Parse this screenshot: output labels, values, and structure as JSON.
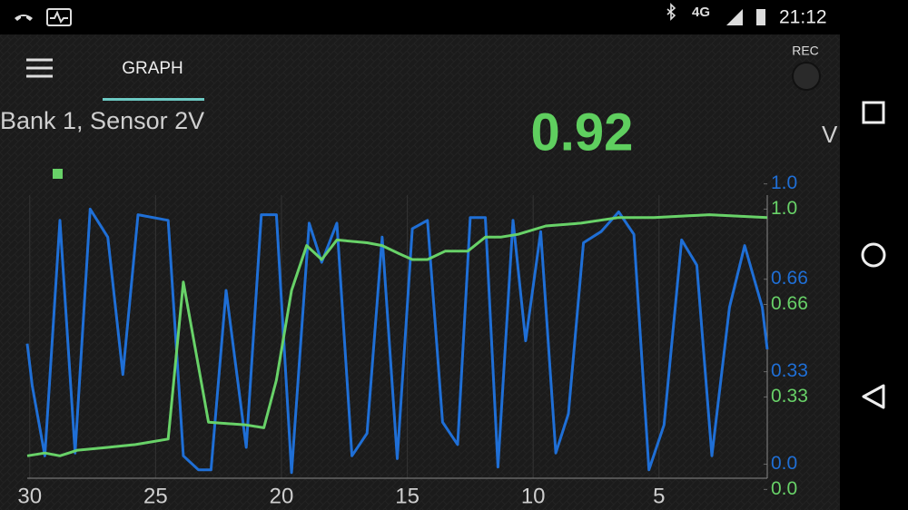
{
  "status_bar": {
    "network": "4G",
    "time": "21:12"
  },
  "app_bar": {
    "tab": "GRAPH",
    "rec": "REC"
  },
  "sensor": {
    "name": "Bank 1, Sensor 2V",
    "value": "0.92",
    "unit": "V"
  },
  "chart_data": {
    "type": "line",
    "xlim": [
      30.1,
      0.7
    ],
    "xticks": [
      30,
      25,
      20,
      15,
      10,
      5
    ],
    "ylim": [
      -0.05,
      0.96
    ],
    "yticks": [
      {
        "value": 0,
        "label": "0.0"
      },
      0.33,
      0.66,
      {
        "value": 1,
        "label": "1.0"
      }
    ],
    "y2lim": [
      0.04,
      1.05
    ],
    "y2ticks": [
      {
        "value": 0,
        "label": "0.0"
      },
      0.33,
      0.66,
      {
        "value": 1,
        "label": "1.0"
      }
    ],
    "grid": true,
    "series": [
      {
        "color": "#1f6fd6",
        "x": [
          30.1,
          29.9,
          29.4,
          28.8,
          28.2,
          27.6,
          26.9,
          26.3,
          25.7,
          24.5,
          23.9,
          23.3,
          22.8,
          22.2,
          21.4,
          20.8,
          20.2,
          19.6,
          18.9,
          18.4,
          17.8,
          17.2,
          16.6,
          16.0,
          15.4,
          14.8,
          14.2,
          13.6,
          13.0,
          12.5,
          11.9,
          11.4,
          10.8,
          10.3,
          9.7,
          9.1,
          8.6,
          8.0,
          7.3,
          6.6,
          6.0,
          5.4,
          4.8,
          4.1,
          3.5,
          2.9,
          2.2,
          1.6,
          0.9,
          0.7
        ],
        "values": [
          0.43,
          0.28,
          0.03,
          0.87,
          0.04,
          0.91,
          0.81,
          0.32,
          0.89,
          0.87,
          0.03,
          -0.02,
          -0.02,
          0.62,
          0.06,
          0.89,
          0.89,
          -0.03,
          0.86,
          0.72,
          0.86,
          0.03,
          0.11,
          0.81,
          0.02,
          0.84,
          0.87,
          0.15,
          0.07,
          0.88,
          0.88,
          -0.01,
          0.87,
          0.44,
          0.83,
          0.04,
          0.18,
          0.79,
          0.83,
          0.9,
          0.82,
          -0.02,
          0.14,
          0.8,
          0.71,
          0.03,
          0.56,
          0.78,
          0.56,
          0.41
        ]
      },
      {
        "color": "#68d268",
        "axis": "y2",
        "x": [
          30.1,
          29.4,
          28.8,
          28.1,
          26.9,
          25.8,
          24.5,
          23.9,
          22.9,
          21.4,
          20.7,
          20.2,
          19.6,
          19.0,
          18.4,
          17.8,
          16.6,
          16.0,
          15.3,
          14.8,
          14.2,
          13.5,
          12.6,
          11.9,
          11.3,
          10.6,
          9.5,
          8.1,
          6.6,
          5.2,
          3.0,
          0.7
        ],
        "values": [
          0.12,
          0.13,
          0.12,
          0.14,
          0.15,
          0.16,
          0.18,
          0.74,
          0.24,
          0.23,
          0.22,
          0.39,
          0.71,
          0.87,
          0.82,
          0.89,
          0.88,
          0.87,
          0.84,
          0.82,
          0.82,
          0.85,
          0.85,
          0.9,
          0.9,
          0.91,
          0.94,
          0.95,
          0.97,
          0.97,
          0.98,
          0.97
        ]
      }
    ]
  }
}
